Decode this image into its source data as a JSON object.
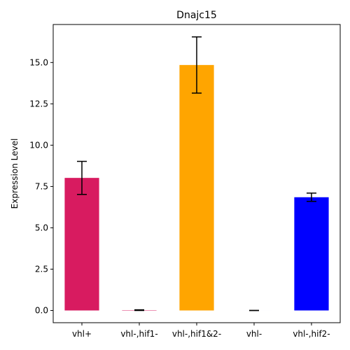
{
  "chart_data": {
    "type": "bar",
    "title": "Dnajc15",
    "xlabel": "",
    "ylabel": "Expression Level",
    "categories": [
      "vhl+",
      "vhl-,hif1-",
      "vhl-,hif1&2-",
      "vhl-",
      "vhl-,hif2-"
    ],
    "values": [
      8.02,
      0.02,
      14.85,
      0.0,
      6.85
    ],
    "errors": [
      1.0,
      0.02,
      1.7,
      0.0,
      0.25
    ],
    "bar_colors": [
      "#d81b60",
      "#d81b60",
      "#ffa500",
      "#0000ff",
      "#0000ff"
    ],
    "ylim": [
      -0.74,
      17.3
    ],
    "yticks": [
      0.0,
      2.5,
      5.0,
      7.5,
      10.0,
      12.5,
      15.0
    ],
    "ytick_labels": [
      "0.0",
      "2.5",
      "5.0",
      "7.5",
      "10.0",
      "12.5",
      "15.0"
    ],
    "grid": false,
    "legend": "none"
  }
}
